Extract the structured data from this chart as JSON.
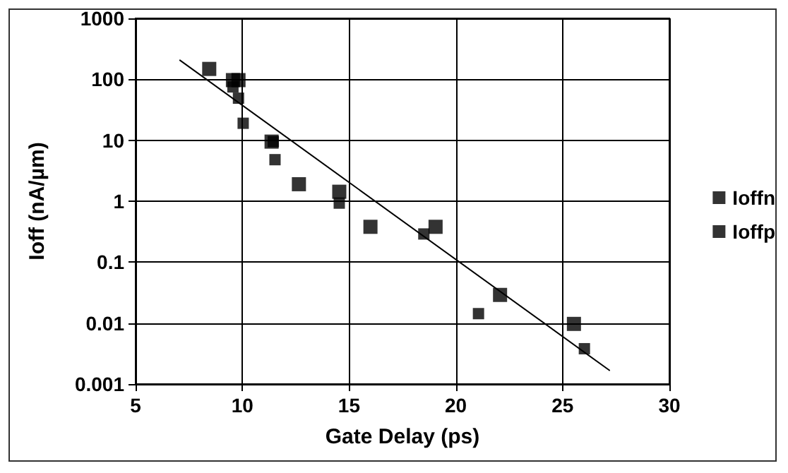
{
  "chart_data": {
    "type": "scatter",
    "xlabel": "Gate Delay (ps)",
    "ylabel": "Ioff (nA/µm)",
    "log": "y",
    "grid": true,
    "legend": "right",
    "marker": "square",
    "xlim": [
      5,
      30
    ],
    "xticks": [
      5,
      10,
      15,
      20,
      25,
      30
    ],
    "ylim": [
      0.001,
      1000
    ],
    "yticks": [
      0.001,
      0.01,
      0.1,
      1,
      10,
      100,
      1000
    ],
    "series": [
      {
        "name": "Ioffn",
        "color": "#000000",
        "x": [
          8.45,
          9.56,
          9.82,
          11.37,
          12.65,
          14.54,
          16.0,
          19.05,
          22.07,
          25.53
        ],
        "values": [
          148,
          97,
          97,
          9.5,
          1.9,
          1.43,
          0.38,
          0.38,
          0.029,
          0.0097
        ]
      },
      {
        "name": "Ioffp",
        "color": "#000000",
        "x": [
          9.56,
          9.82,
          10.04,
          11.45,
          11.53,
          14.54,
          18.5,
          21.06,
          26.02
        ],
        "values": [
          75,
          49,
          19,
          9.5,
          4.8,
          0.93,
          0.29,
          0.0143,
          0.0038
        ]
      },
      {
        "type": "line",
        "color": "#000000",
        "marker": "none",
        "line_style": "solid",
        "x": [
          7.08,
          27.19
        ],
        "values": [
          205,
          0.00168
        ]
      }
    ]
  }
}
